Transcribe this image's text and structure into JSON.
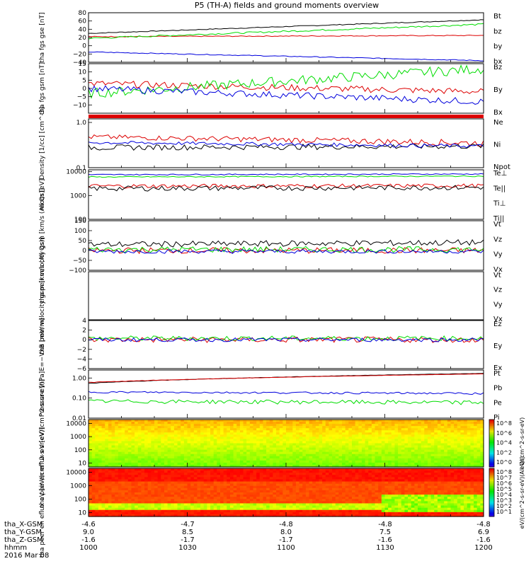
{
  "title": "P5 (TH-A) fields and ground moments overview",
  "date": "2016 Mar 08",
  "time_ticks": [
    "1000",
    "1030",
    "1100",
    "1130",
    "1200"
  ],
  "ephemeris": {
    "labels": [
      "tha_X-GSM",
      "tha_Y-GSM",
      "tha_Z-GSM",
      "hhmm"
    ],
    "rows": [
      [
        "-4.6",
        "-4.7",
        "-4.8",
        "-4.8",
        "-4.8"
      ],
      [
        "9.0",
        "8.5",
        "8.0",
        "7.5",
        "6.9"
      ],
      [
        "-1.6",
        "-1.7",
        "-1.7",
        "-1.6",
        "-1.6"
      ]
    ]
  },
  "colors": {
    "black": "#000000",
    "red": "#dd0000",
    "green": "#00dd00",
    "blue": "#0000dd",
    "frame": "#000000"
  },
  "colorbars": [
    {
      "label": "eV/(cm^2-s-sr-eV)",
      "ticks": [
        "10^8",
        "10^6",
        "10^4",
        "10^2",
        "10^0"
      ]
    },
    {
      "label": "eV/(cm^2-s-sr-eV)(All Qs)",
      "ticks": [
        "10^8",
        "10^7",
        "10^6",
        "10^5",
        "10^4",
        "10^3",
        "10^2",
        "10^1"
      ]
    }
  ],
  "chart_data": [
    {
      "type": "line",
      "ylabel": "tha fgs gse [nT]",
      "ylim": [
        -40,
        80
      ],
      "yticks": [
        "80",
        "60",
        "40",
        "20",
        "0",
        "−20",
        "−40"
      ],
      "ytick_values": [
        80,
        60,
        40,
        20,
        0,
        -20,
        -40
      ],
      "yscale": "linear",
      "series": [
        {
          "name": "Bt",
          "color": "#000000",
          "start": 30,
          "end": 63,
          "noise": 1
        },
        {
          "name": "bz",
          "color": "#dd0000",
          "start": 22,
          "end": 25,
          "noise": 1
        },
        {
          "name": "by",
          "color": "#00dd00",
          "start": 18,
          "end": 52,
          "noise": 2
        },
        {
          "name": "bx",
          "color": "#0000dd",
          "start": -15,
          "end": -36,
          "noise": 1
        }
      ]
    },
    {
      "type": "line",
      "ylabel": "tha fgs gsm [nT]",
      "ylim": [
        -15,
        15
      ],
      "yticks": [
        "15",
        "10",
        "5",
        "0",
        "−5",
        "−10"
      ],
      "ytick_values": [
        15,
        10,
        5,
        0,
        -5,
        -10
      ],
      "yscale": "linear",
      "series": [
        {
          "name": "Bz",
          "color": "#dd0000",
          "start": 3,
          "end": -2,
          "noise": 2
        },
        {
          "name": "By",
          "color": "#00dd00",
          "start": -3,
          "end": 12,
          "noise": 3
        },
        {
          "name": "Bx",
          "color": "#0000dd",
          "start": 0,
          "end": -8,
          "noise": 2
        }
      ]
    },
    {
      "type": "line",
      "ylabel": "Density [1/cc] [cm^-3]",
      "ylim": [
        0.1,
        1.2
      ],
      "yticks": [
        "1.0",
        "0.1"
      ],
      "ytick_values": [
        1.0,
        0.1
      ],
      "yscale": "log",
      "series": [
        {
          "name": "Ne",
          "color": "#dd0000",
          "start": 0.48,
          "end": 0.35,
          "noise": 0.06
        },
        {
          "name": "Ni",
          "color": "#000000",
          "start": 0.28,
          "end": 0.3,
          "noise": 0.04
        },
        {
          "name": "Npot",
          "color": "#0000dd",
          "start": 0.36,
          "end": 0.3,
          "noise": 0.03
        }
      ]
    },
    {
      "type": "line",
      "ylabel": "mom [eV]",
      "ylim": [
        100,
        12000
      ],
      "yticks": [
        "10000",
        "1000",
        "100"
      ],
      "ytick_values": [
        10000,
        1000,
        100
      ],
      "yscale": "log",
      "series": [
        {
          "name": "Te⊥",
          "color": "#dd0000",
          "start": 2500,
          "end": 2600,
          "noise": 500
        },
        {
          "name": "Te||",
          "color": "#000000",
          "start": 2000,
          "end": 2200,
          "noise": 500
        },
        {
          "name": "Ti⊥",
          "color": "#0000dd",
          "start": 7500,
          "end": 8000,
          "noise": 400
        },
        {
          "name": "Ti||",
          "color": "#00dd00",
          "start": 6000,
          "end": 6500,
          "noise": 300
        }
      ]
    },
    {
      "type": "line",
      "ylabel": "tha peir velocity gsm [km/s (All Qs)]",
      "ylim": [
        -100,
        150
      ],
      "yticks": [
        "150",
        "100",
        "50",
        "0",
        "−50",
        "−100"
      ],
      "ytick_values": [
        150,
        100,
        50,
        0,
        -50,
        -100
      ],
      "yscale": "linear",
      "series": [
        {
          "name": "Vt",
          "color": "#000000",
          "start": 30,
          "end": 40,
          "noise": 15
        },
        {
          "name": "Vz",
          "color": "#dd0000",
          "start": 0,
          "end": 0,
          "noise": 15
        },
        {
          "name": "Vy",
          "color": "#00dd00",
          "start": 5,
          "end": 5,
          "noise": 15
        },
        {
          "name": "Vx",
          "color": "#0000dd",
          "start": -5,
          "end": -5,
          "noise": 10
        }
      ]
    },
    {
      "type": "line",
      "ylabel": "tha peer velocity gsm [km/s (All Qs)]",
      "ylim": [
        -100,
        150
      ],
      "yticks": [],
      "ytick_values": [],
      "yscale": "linear",
      "series": [
        {
          "name": "Vt",
          "color": "#000000"
        },
        {
          "name": "Vz",
          "color": "#dd0000"
        },
        {
          "name": "Vy",
          "color": "#00dd00"
        },
        {
          "name": "Vx",
          "color": "#0000dd"
        }
      ]
    },
    {
      "type": "line",
      "ylabel": "E=−VxB [mV/m]",
      "ylim": [
        -6,
        4
      ],
      "yticks": [
        "4",
        "2",
        "0",
        "−2",
        "−4",
        "−6"
      ],
      "ytick_values": [
        4,
        2,
        0,
        -2,
        -4,
        -6
      ],
      "yscale": "linear",
      "series": [
        {
          "name": "Ez",
          "color": "#dd0000",
          "start": 0,
          "end": 0,
          "noise": 0.6
        },
        {
          "name": "Ey",
          "color": "#00dd00",
          "start": 0.3,
          "end": 0.3,
          "noise": 0.5
        },
        {
          "name": "Ex",
          "color": "#0000dd",
          "start": 0,
          "end": 0,
          "noise": 0.4
        }
      ]
    },
    {
      "type": "line",
      "ylabel": "Pressure [nPa]",
      "ylim": [
        0.01,
        2.5
      ],
      "yticks": [
        "1.00",
        "0.10",
        "0.01"
      ],
      "ytick_values": [
        1.0,
        0.1,
        0.01
      ],
      "yscale": "log",
      "series": [
        {
          "name": "Pt",
          "color": "#000000",
          "start": 0.55,
          "end": 1.7,
          "noise": 0.02
        },
        {
          "name": "Pb",
          "color": "#dd0000",
          "start": 0.6,
          "end": 1.6,
          "noise": 0.02
        },
        {
          "name": "Pe",
          "color": "#0000dd",
          "start": 0.2,
          "end": 0.17,
          "noise": 0.02
        },
        {
          "name": "Pi",
          "color": "#00dd00",
          "start": 0.07,
          "end": 0.06,
          "noise": 0.015
        }
      ]
    },
    {
      "type": "heatmap",
      "ylabel": "tha peir en eflux eV [eV/(cm^2-s-sr-eV)]",
      "ylim": [
        5,
        20000
      ],
      "yticks": [
        "10000",
        "1000",
        "100",
        "10"
      ],
      "ytick_values": [
        10000,
        1000,
        100,
        10
      ],
      "yscale": "log"
    },
    {
      "type": "heatmap",
      "ylabel": "tha peer en eflux eV [eV/(cm^2-s-sr-eV)]",
      "ylim": [
        5,
        20000
      ],
      "yticks": [
        "10000",
        "1000",
        "100",
        "10"
      ],
      "ytick_values": [
        10000,
        1000,
        100,
        10
      ],
      "yscale": "log"
    }
  ]
}
